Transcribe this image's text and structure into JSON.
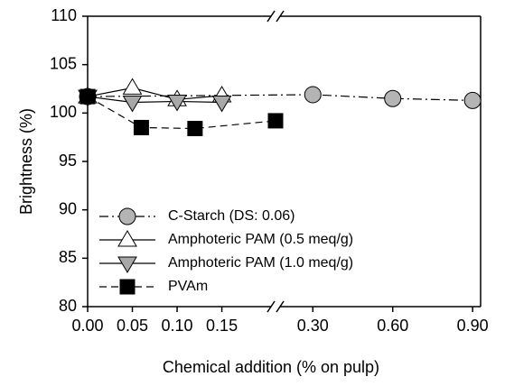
{
  "chart_data": {
    "type": "line",
    "x_label": "Chemical addition (% on pulp)",
    "y_label": "Brightness (%)",
    "x_segments": [
      {
        "xlim": [
          0,
          0.21
        ],
        "xticks": [
          {
            "value": 0,
            "label": "0.00"
          },
          {
            "value": 0.05,
            "label": "0.05"
          },
          {
            "value": 0.1,
            "label": "0.10"
          },
          {
            "value": 0.15,
            "label": "0.15"
          }
        ]
      },
      {
        "xlim": [
          0.16,
          0.93
        ],
        "xticks": [
          {
            "value": 0.3,
            "label": "0.30"
          },
          {
            "value": 0.6,
            "label": "0.60"
          },
          {
            "value": 0.9,
            "label": "0.90"
          }
        ]
      }
    ],
    "ylim": [
      80,
      110
    ],
    "yticks": [
      80,
      85,
      90,
      95,
      100,
      105,
      110
    ],
    "legend": "lower left",
    "series": [
      {
        "name": "C-Starch (DS: 0.06)",
        "color": "#b4b4b4",
        "marker": "circle",
        "line": "dashdot",
        "x": [
          0,
          0.3,
          0.6,
          0.9
        ],
        "values": [
          101.7,
          101.9,
          101.5,
          101.3
        ]
      },
      {
        "name": "Amphoteric PAM (0.5 meq/g)",
        "color": "#ffffff",
        "marker": "triangle-up",
        "line": "solid",
        "x": [
          0,
          0.05,
          0.1,
          0.15
        ],
        "values": [
          101.7,
          102.6,
          101.4,
          101.8
        ]
      },
      {
        "name": "Amphoteric PAM (1.0 meq/g)",
        "color": "#a8a8a8",
        "marker": "triangle-down",
        "line": "solid",
        "x": [
          0,
          0.05,
          0.1,
          0.15
        ],
        "values": [
          101.7,
          101.1,
          101.2,
          101.1
        ]
      },
      {
        "name": "PVAm",
        "color": "#000000",
        "marker": "square",
        "line": "dashed",
        "x": [
          0,
          0.06,
          0.12,
          0.21
        ],
        "values": [
          101.7,
          98.5,
          98.4,
          99.2
        ]
      }
    ]
  }
}
